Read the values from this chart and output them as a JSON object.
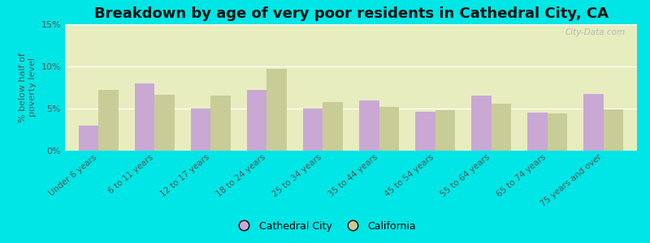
{
  "title": "Breakdown by age of very poor residents in Cathedral City, CA",
  "ylabel": "% below half of\npoverty level",
  "categories": [
    "Under 6 years",
    "6 to 11 years",
    "12 to 17 years",
    "18 to 24 years",
    "25 to 34 years",
    "35 to 44 years",
    "45 to 54 years",
    "55 to 64 years",
    "65 to 74 years",
    "75 years and over"
  ],
  "cathedral_city": [
    3.0,
    8.0,
    5.0,
    7.2,
    5.0,
    6.0,
    4.6,
    6.5,
    4.5,
    6.7
  ],
  "california": [
    7.2,
    6.6,
    6.5,
    9.7,
    5.8,
    5.2,
    4.8,
    5.6,
    4.4,
    4.9
  ],
  "cathedral_color": "#c9a8d4",
  "california_color": "#c8cc96",
  "background_outer": "#00e5e5",
  "background_plot": "#e8edc0",
  "ylim": [
    0,
    15
  ],
  "yticks": [
    0,
    5,
    10,
    15
  ],
  "ytick_labels": [
    "0%",
    "5%",
    "10%",
    "15%"
  ],
  "title_fontsize": 13,
  "bar_width": 0.35,
  "watermark": "City-Data.com"
}
